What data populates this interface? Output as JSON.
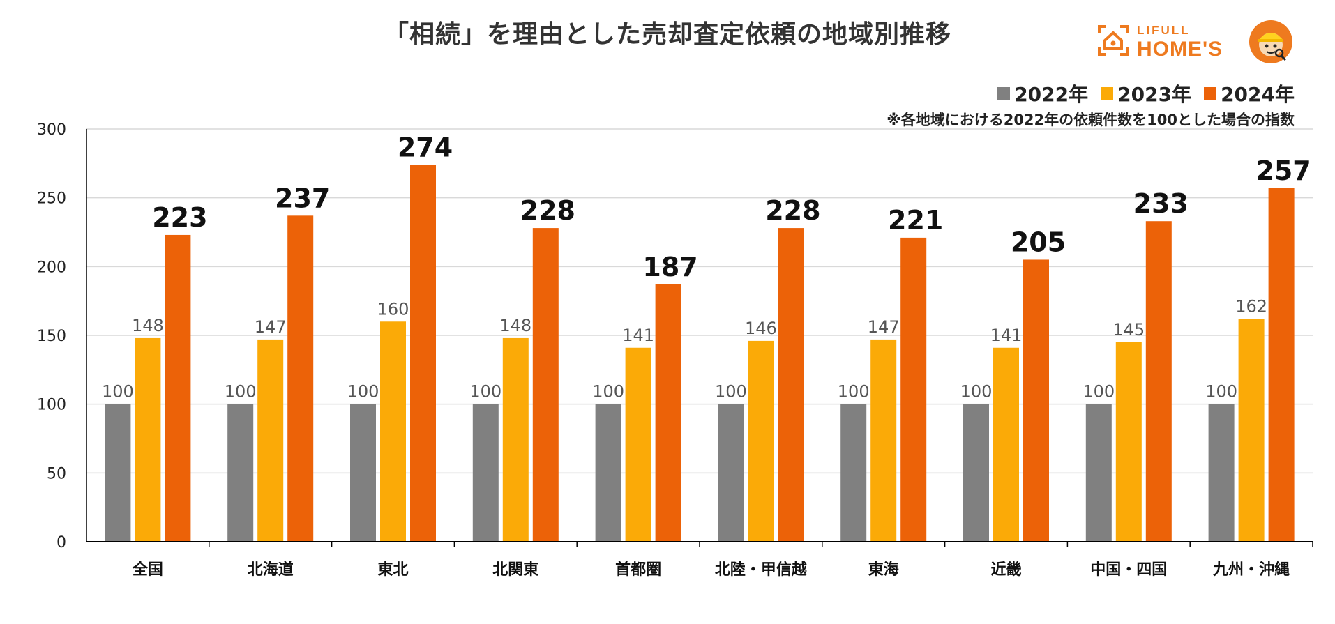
{
  "header": {
    "title": "「相続」を理由とした売却査定依頼の地域別推移",
    "brand_top": "LIFULL",
    "brand_main": "HOME'S"
  },
  "legend": [
    {
      "label": "2022年",
      "color": "#808080"
    },
    {
      "label": "2023年",
      "color": "#fbaa07"
    },
    {
      "label": "2024年",
      "color": "#ec6208"
    }
  ],
  "note": "※各地域における2022年の依頼件数を100とした場合の指数",
  "chart_data": {
    "type": "bar",
    "title": "「相続」を理由とした売却査定依頼の地域別推移",
    "xlabel": "",
    "ylabel": "",
    "ylim": [
      0,
      300
    ],
    "yticks": [
      0,
      50,
      100,
      150,
      200,
      250,
      300
    ],
    "grid": true,
    "legend_position": "top-right",
    "categories": [
      "全国",
      "北海道",
      "東北",
      "北関東",
      "首都圏",
      "北陸・甲信越",
      "東海",
      "近畿",
      "中国・四国",
      "九州・沖縄"
    ],
    "series": [
      {
        "name": "2022年",
        "color": "#808080",
        "values": [
          100,
          100,
          100,
          100,
          100,
          100,
          100,
          100,
          100,
          100
        ]
      },
      {
        "name": "2023年",
        "color": "#fbaa07",
        "values": [
          148,
          147,
          160,
          148,
          141,
          146,
          147,
          141,
          145,
          162
        ]
      },
      {
        "name": "2024年",
        "color": "#ec6208",
        "values": [
          223,
          237,
          274,
          228,
          187,
          228,
          221,
          205,
          233,
          257
        ]
      }
    ]
  }
}
